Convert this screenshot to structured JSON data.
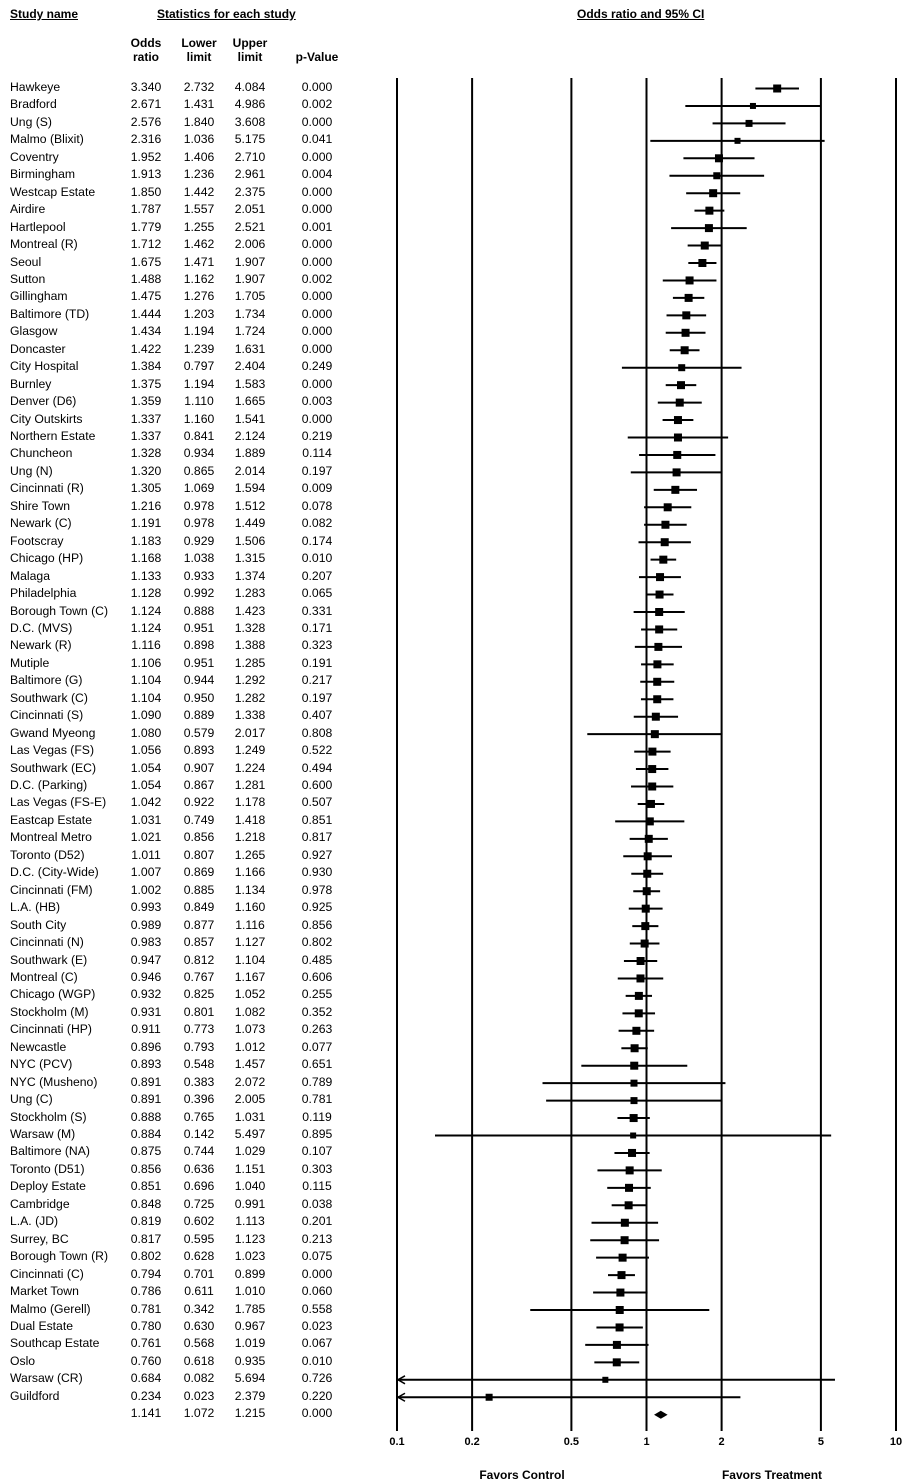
{
  "headers": {
    "study_name": "Study name",
    "stats": "Statistics for each study",
    "plot": "Odds ratio and 95% CI",
    "odds_ratio": [
      "Odds",
      "ratio"
    ],
    "lower": [
      "Lower",
      "limit"
    ],
    "upper": [
      "Upper",
      "limit"
    ],
    "pvalue": [
      "p-Value"
    ]
  },
  "rows": [
    {
      "name": "Hawkeye",
      "or": "3.340",
      "lo": "2.732",
      "up": "4.084",
      "p": "0.000"
    },
    {
      "name": "Bradford",
      "or": "2.671",
      "lo": "1.431",
      "up": "4.986",
      "p": "0.002"
    },
    {
      "name": "Ung (S)",
      "or": "2.576",
      "lo": "1.840",
      "up": "3.608",
      "p": "0.000"
    },
    {
      "name": "Malmo (Blixit)",
      "or": "2.316",
      "lo": "1.036",
      "up": "5.175",
      "p": "0.041"
    },
    {
      "name": "Coventry",
      "or": "1.952",
      "lo": "1.406",
      "up": "2.710",
      "p": "0.000"
    },
    {
      "name": "Birmingham",
      "or": "1.913",
      "lo": "1.236",
      "up": "2.961",
      "p": "0.004"
    },
    {
      "name": "Westcap Estate",
      "or": "1.850",
      "lo": "1.442",
      "up": "2.375",
      "p": "0.000"
    },
    {
      "name": "Airdire",
      "or": "1.787",
      "lo": "1.557",
      "up": "2.051",
      "p": "0.000"
    },
    {
      "name": "Hartlepool",
      "or": "1.779",
      "lo": "1.255",
      "up": "2.521",
      "p": "0.001"
    },
    {
      "name": "Montreal (R)",
      "or": "1.712",
      "lo": "1.462",
      "up": "2.006",
      "p": "0.000"
    },
    {
      "name": "Seoul",
      "or": "1.675",
      "lo": "1.471",
      "up": "1.907",
      "p": "0.000"
    },
    {
      "name": "Sutton",
      "or": "1.488",
      "lo": "1.162",
      "up": "1.907",
      "p": "0.002"
    },
    {
      "name": "Gillingham",
      "or": "1.475",
      "lo": "1.276",
      "up": "1.705",
      "p": "0.000"
    },
    {
      "name": "Baltimore (TD)",
      "or": "1.444",
      "lo": "1.203",
      "up": "1.734",
      "p": "0.000"
    },
    {
      "name": "Glasgow",
      "or": "1.434",
      "lo": "1.194",
      "up": "1.724",
      "p": "0.000"
    },
    {
      "name": "Doncaster",
      "or": "1.422",
      "lo": "1.239",
      "up": "1.631",
      "p": "0.000"
    },
    {
      "name": "City Hospital",
      "or": "1.384",
      "lo": "0.797",
      "up": "2.404",
      "p": "0.249"
    },
    {
      "name": "Burnley",
      "or": "1.375",
      "lo": "1.194",
      "up": "1.583",
      "p": "0.000"
    },
    {
      "name": "Denver (D6)",
      "or": "1.359",
      "lo": "1.110",
      "up": "1.665",
      "p": "0.003"
    },
    {
      "name": "City Outskirts",
      "or": "1.337",
      "lo": "1.160",
      "up": "1.541",
      "p": "0.000"
    },
    {
      "name": "Northern Estate",
      "or": "1.337",
      "lo": "0.841",
      "up": "2.124",
      "p": "0.219"
    },
    {
      "name": "Chuncheon",
      "or": "1.328",
      "lo": "0.934",
      "up": "1.889",
      "p": "0.114"
    },
    {
      "name": "Ung (N)",
      "or": "1.320",
      "lo": "0.865",
      "up": "2.014",
      "p": "0.197"
    },
    {
      "name": "Cincinnati (R)",
      "or": "1.305",
      "lo": "1.069",
      "up": "1.594",
      "p": "0.009"
    },
    {
      "name": "Shire Town",
      "or": "1.216",
      "lo": "0.978",
      "up": "1.512",
      "p": "0.078"
    },
    {
      "name": "Newark (C)",
      "or": "1.191",
      "lo": "0.978",
      "up": "1.449",
      "p": "0.082"
    },
    {
      "name": "Footscray",
      "or": "1.183",
      "lo": "0.929",
      "up": "1.506",
      "p": "0.174"
    },
    {
      "name": "Chicago (HP)",
      "or": "1.168",
      "lo": "1.038",
      "up": "1.315",
      "p": "0.010"
    },
    {
      "name": "Malaga",
      "or": "1.133",
      "lo": "0.933",
      "up": "1.374",
      "p": "0.207"
    },
    {
      "name": "Philadelphia",
      "or": "1.128",
      "lo": "0.992",
      "up": "1.283",
      "p": "0.065"
    },
    {
      "name": "Borough Town (C)",
      "or": "1.124",
      "lo": "0.888",
      "up": "1.423",
      "p": "0.331"
    },
    {
      "name": "D.C. (MVS)",
      "or": "1.124",
      "lo": "0.951",
      "up": "1.328",
      "p": "0.171"
    },
    {
      "name": "Newark (R)",
      "or": "1.116",
      "lo": "0.898",
      "up": "1.388",
      "p": "0.323"
    },
    {
      "name": "Mutiple",
      "or": "1.106",
      "lo": "0.951",
      "up": "1.285",
      "p": "0.191"
    },
    {
      "name": "Baltimore (G)",
      "or": "1.104",
      "lo": "0.944",
      "up": "1.292",
      "p": "0.217"
    },
    {
      "name": "Southwark (C)",
      "or": "1.104",
      "lo": "0.950",
      "up": "1.282",
      "p": "0.197"
    },
    {
      "name": "Cincinnati (S)",
      "or": "1.090",
      "lo": "0.889",
      "up": "1.338",
      "p": "0.407"
    },
    {
      "name": "Gwand Myeong",
      "or": "1.080",
      "lo": "0.579",
      "up": "2.017",
      "p": "0.808"
    },
    {
      "name": "Las Vegas (FS)",
      "or": "1.056",
      "lo": "0.893",
      "up": "1.249",
      "p": "0.522"
    },
    {
      "name": "Southwark (EC)",
      "or": "1.054",
      "lo": "0.907",
      "up": "1.224",
      "p": "0.494"
    },
    {
      "name": "D.C. (Parking)",
      "or": "1.054",
      "lo": "0.867",
      "up": "1.281",
      "p": "0.600"
    },
    {
      "name": "Las Vegas (FS-E)",
      "or": "1.042",
      "lo": "0.922",
      "up": "1.178",
      "p": "0.507"
    },
    {
      "name": "Eastcap Estate",
      "or": "1.031",
      "lo": "0.749",
      "up": "1.418",
      "p": "0.851"
    },
    {
      "name": "Montreal Metro",
      "or": "1.021",
      "lo": "0.856",
      "up": "1.218",
      "p": "0.817"
    },
    {
      "name": "Toronto (D52)",
      "or": "1.011",
      "lo": "0.807",
      "up": "1.265",
      "p": "0.927"
    },
    {
      "name": "D.C. (City-Wide)",
      "or": "1.007",
      "lo": "0.869",
      "up": "1.166",
      "p": "0.930"
    },
    {
      "name": "Cincinnati (FM)",
      "or": "1.002",
      "lo": "0.885",
      "up": "1.134",
      "p": "0.978"
    },
    {
      "name": "L.A. (HB)",
      "or": "0.993",
      "lo": "0.849",
      "up": "1.160",
      "p": "0.925"
    },
    {
      "name": "South City",
      "or": "0.989",
      "lo": "0.877",
      "up": "1.116",
      "p": "0.856"
    },
    {
      "name": "Cincinnati (N)",
      "or": "0.983",
      "lo": "0.857",
      "up": "1.127",
      "p": "0.802"
    },
    {
      "name": "Southwark (E)",
      "or": "0.947",
      "lo": "0.812",
      "up": "1.104",
      "p": "0.485"
    },
    {
      "name": "Montreal (C)",
      "or": "0.946",
      "lo": "0.767",
      "up": "1.167",
      "p": "0.606"
    },
    {
      "name": "Chicago (WGP)",
      "or": "0.932",
      "lo": "0.825",
      "up": "1.052",
      "p": "0.255"
    },
    {
      "name": "Stockholm (M)",
      "or": "0.931",
      "lo": "0.801",
      "up": "1.082",
      "p": "0.352"
    },
    {
      "name": "Cincinnati (HP)",
      "or": "0.911",
      "lo": "0.773",
      "up": "1.073",
      "p": "0.263"
    },
    {
      "name": "Newcastle",
      "or": "0.896",
      "lo": "0.793",
      "up": "1.012",
      "p": "0.077"
    },
    {
      "name": "NYC (PCV)",
      "or": "0.893",
      "lo": "0.548",
      "up": "1.457",
      "p": "0.651"
    },
    {
      "name": "NYC (Musheno)",
      "or": "0.891",
      "lo": "0.383",
      "up": "2.072",
      "p": "0.789"
    },
    {
      "name": "Ung (C)",
      "or": "0.891",
      "lo": "0.396",
      "up": "2.005",
      "p": "0.781"
    },
    {
      "name": "Stockholm (S)",
      "or": "0.888",
      "lo": "0.765",
      "up": "1.031",
      "p": "0.119"
    },
    {
      "name": "Warsaw (M)",
      "or": "0.884",
      "lo": "0.142",
      "up": "5.497",
      "p": "0.895"
    },
    {
      "name": "Baltimore (NA)",
      "or": "0.875",
      "lo": "0.744",
      "up": "1.029",
      "p": "0.107"
    },
    {
      "name": "Toronto (D51)",
      "or": "0.856",
      "lo": "0.636",
      "up": "1.151",
      "p": "0.303"
    },
    {
      "name": "Deploy Estate",
      "or": "0.851",
      "lo": "0.696",
      "up": "1.040",
      "p": "0.115"
    },
    {
      "name": "Cambridge",
      "or": "0.848",
      "lo": "0.725",
      "up": "0.991",
      "p": "0.038"
    },
    {
      "name": "L.A. (JD)",
      "or": "0.819",
      "lo": "0.602",
      "up": "1.113",
      "p": "0.201"
    },
    {
      "name": "Surrey, BC",
      "or": "0.817",
      "lo": "0.595",
      "up": "1.123",
      "p": "0.213"
    },
    {
      "name": "Borough Town (R)",
      "or": "0.802",
      "lo": "0.628",
      "up": "1.023",
      "p": "0.075"
    },
    {
      "name": "Cincinnati (C)",
      "or": "0.794",
      "lo": "0.701",
      "up": "0.899",
      "p": "0.000"
    },
    {
      "name": "Market Town",
      "or": "0.786",
      "lo": "0.611",
      "up": "1.010",
      "p": "0.060"
    },
    {
      "name": "Malmo (Gerell)",
      "or": "0.781",
      "lo": "0.342",
      "up": "1.785",
      "p": "0.558"
    },
    {
      "name": "Dual Estate",
      "or": "0.780",
      "lo": "0.630",
      "up": "0.967",
      "p": "0.023"
    },
    {
      "name": "Southcap Estate",
      "or": "0.761",
      "lo": "0.568",
      "up": "1.019",
      "p": "0.067"
    },
    {
      "name": "Oslo",
      "or": "0.760",
      "lo": "0.618",
      "up": "0.935",
      "p": "0.010"
    },
    {
      "name": "Warsaw (CR)",
      "or": "0.684",
      "lo": "0.082",
      "up": "5.694",
      "p": "0.726"
    },
    {
      "name": "Guildford",
      "or": "0.234",
      "lo": "0.023",
      "up": "2.379",
      "p": "0.220"
    }
  ],
  "summary": {
    "or": "1.141",
    "lo": "1.072",
    "up": "1.215",
    "p": "0.000"
  },
  "axis": {
    "ticks": [
      0.1,
      0.2,
      0.5,
      1,
      2,
      5,
      10
    ],
    "tick_labels": [
      "0.1",
      "0.2",
      "0.5",
      "1",
      "2",
      "5",
      "10"
    ],
    "favors_left": "Favors Control",
    "favors_right": "Favors Treatment"
  },
  "chart_data": {
    "type": "forest",
    "title": "Odds ratio and 95% CI",
    "x_scale": "log",
    "xlim": [
      0.1,
      10
    ],
    "reference_line": 1,
    "grid": "vertical lines at ticks",
    "marker": "square",
    "summary_marker": "diamond"
  }
}
